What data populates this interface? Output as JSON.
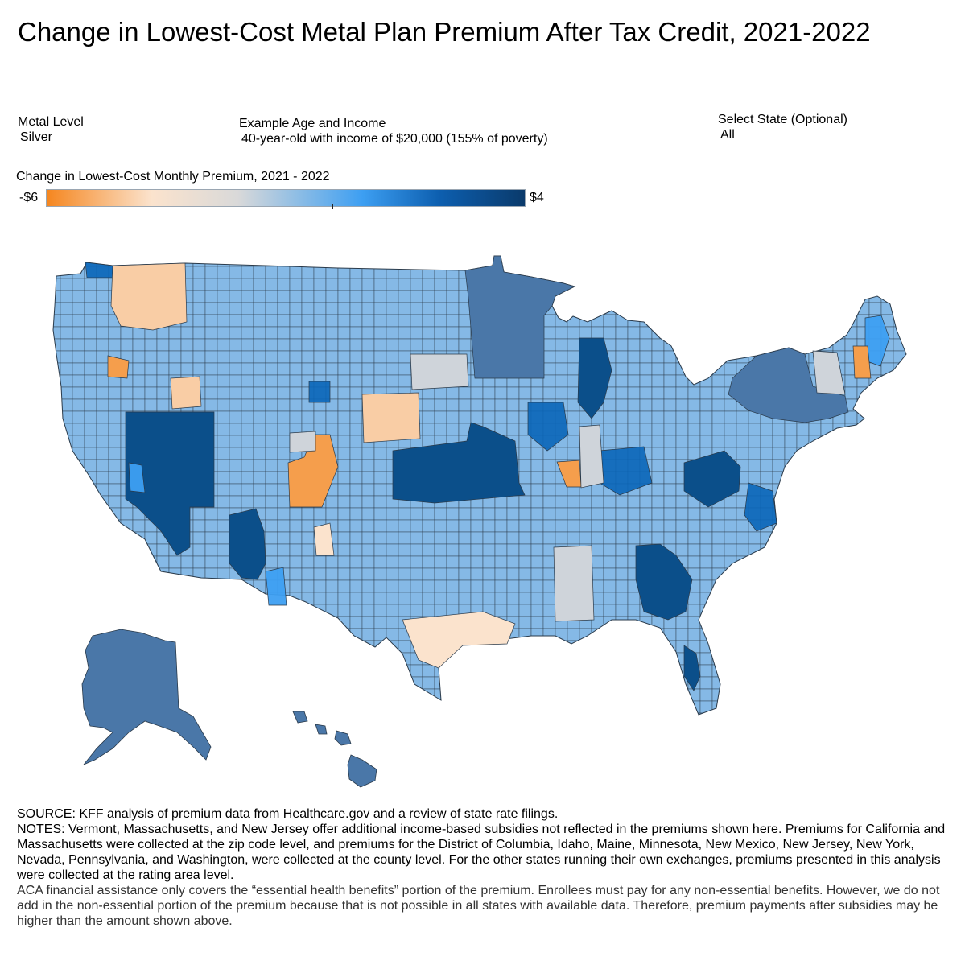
{
  "header": {
    "title": "Change in Lowest-Cost Metal Plan Premium After Tax Credit, 2021-2022"
  },
  "filters": {
    "metal_level": {
      "label": "Metal Level",
      "value": "Silver"
    },
    "age_income": {
      "label": "Example Age and Income",
      "value": "40-year-old with income of $20,000 (155% of poverty)"
    },
    "state": {
      "label": "Select State (Optional)",
      "value": "All"
    }
  },
  "legend": {
    "title": "Change in Lowest-Cost Monthly Premium, 2021 - 2022",
    "min_label": "-$6",
    "max_label": "$4",
    "min_value": -6,
    "max_value": 4,
    "colors": [
      "#f5861f",
      "#fbe3cd",
      "#d9d9d9",
      "#3d9ff2",
      "#0d5fb0",
      "#0a3a6b"
    ]
  },
  "map": {
    "region": "United States counties",
    "fills": {
      "base": "#85b9e6",
      "state_alaska_hawaii": "#4a77a8",
      "dark": "#0b4f8a",
      "mid": "#0a66b8",
      "bright": "#3d9ff2",
      "orange": "#f59e4c",
      "peach": "#f9cda5",
      "light_peach": "#fbe3cd",
      "gray": "#cfd4da",
      "border": "#2a3a4a"
    }
  },
  "footer": {
    "source": "SOURCE: KFF analysis of premium data from Healthcare.gov and a review of state rate filings.",
    "notes": "NOTES: Vermont, Massachusetts, and New Jersey offer additional income-based subsidies not reflected in the premiums shown here. Premiums for California and Massachusetts were collected at the zip code level, and premiums for the District of Columbia, Idaho, Maine, Minnesota, New Mexico, New Jersey, New York, Nevada, Pennsylvania, and Washington, were collected at the county level. For the other states running their own exchanges, premiums presented in this analysis were collected at the rating area level.",
    "aca_note": "ACA financial assistance only covers the “essential health benefits” portion of the premium. Enrollees must pay for any non-essential benefits. However, we do not add in the non-essential portion of the premium because that is not possible in all states with available data. Therefore, premium payments after subsidies may be higher than the amount shown above."
  }
}
